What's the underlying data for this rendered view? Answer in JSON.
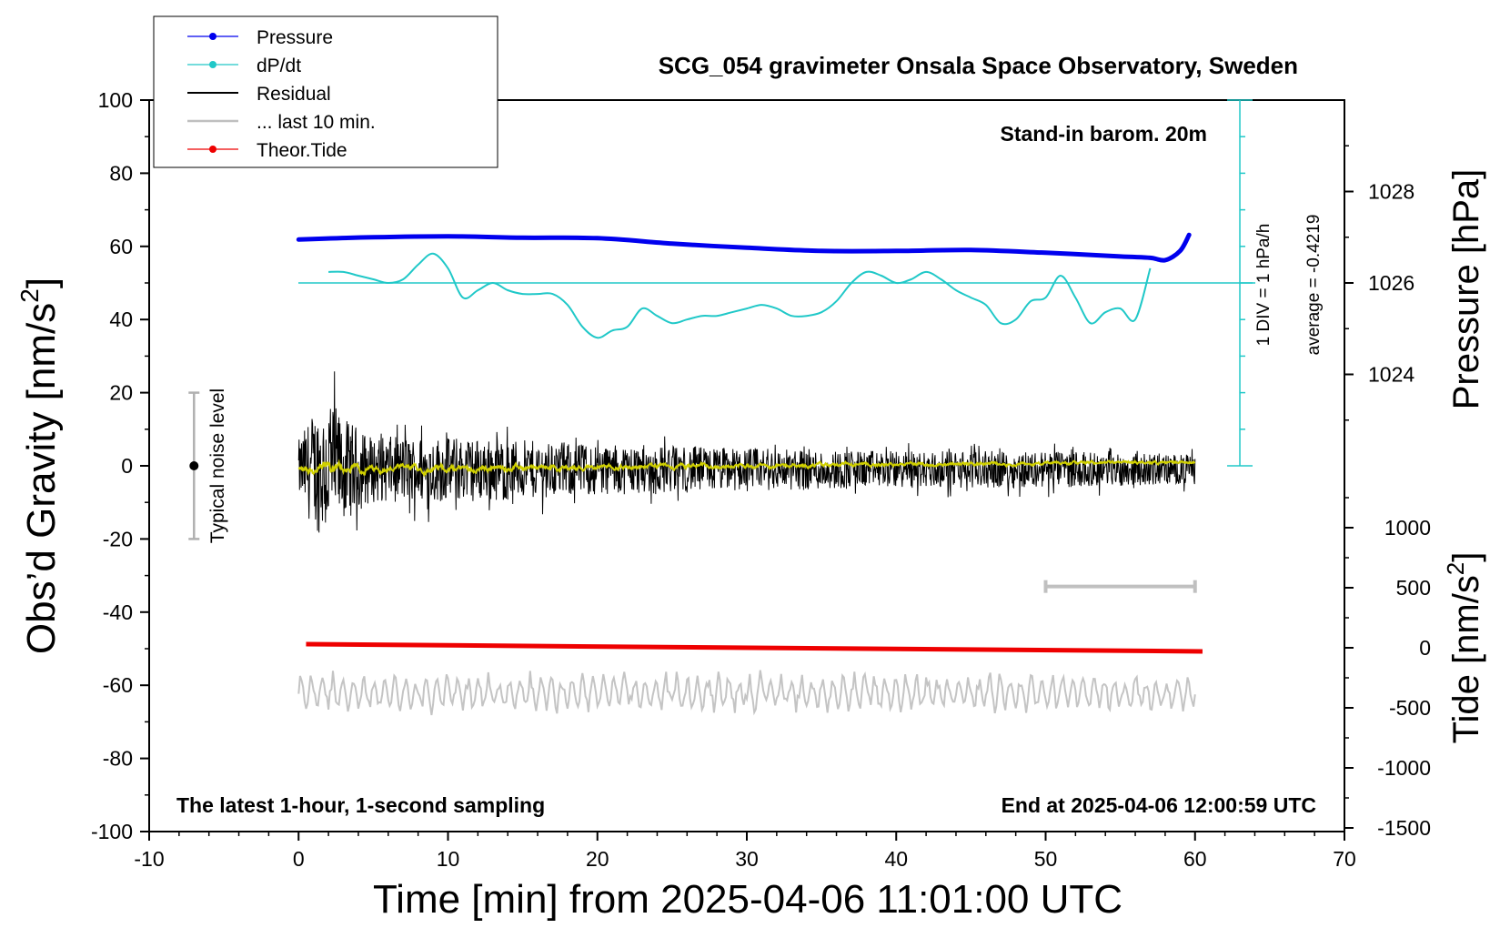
{
  "chart_data": {
    "type": "line",
    "title": "SCG_054 gravimeter Onsala Space Observatory, Sweden",
    "xlabel": "Time [min] from 2025-04-06 11:01:00 UTC",
    "ylabel_left": "Obs’d Gravity [nm/s²]",
    "ylabel_left_base": "Obs’d Gravity [nm/s",
    "ylabel_right_top_base": "Pressure [hPa]",
    "ylabel_right_bottom_base": "Tide [nm/s",
    "superscript": "2",
    "closing_bracket": "]",
    "xlim": [
      -10,
      70
    ],
    "ylim_left": [
      -100,
      100
    ],
    "x_ticks": [
      -10,
      0,
      10,
      20,
      30,
      40,
      50,
      60,
      70
    ],
    "y_ticks_left": [
      100,
      80,
      60,
      40,
      20,
      0,
      -20,
      -40,
      -60,
      -80,
      -100
    ],
    "pressure_axis": {
      "ticks": [
        1028,
        1026,
        1024
      ],
      "range_hpa": [
        1022,
        1030
      ]
    },
    "tide_axis": {
      "ticks": [
        1000,
        500,
        0,
        -500,
        -1000,
        -1500
      ],
      "range": [
        -1500,
        1500
      ]
    },
    "grid": false,
    "legend_position": "top-left",
    "legend": [
      {
        "label": "Pressure",
        "color": "#0000ee",
        "marker": true
      },
      {
        "label": "dP/dt",
        "color": "#20c8c8",
        "marker": true
      },
      {
        "label": "Residual",
        "color": "#000000",
        "marker": false
      },
      {
        "label": "... last 10 min.",
        "color": "#bfbfbf",
        "marker": false
      },
      {
        "label": "Theor.Tide",
        "color": "#ee0000",
        "marker": true
      }
    ],
    "annotations": {
      "barometer": "Stand-in barom. 20m",
      "bottom_left": "The latest 1-hour, 1-second sampling",
      "bottom_right": "End at 2025-04-06 12:00:59 UTC",
      "noise_label": "Typical noise level",
      "div_label": "1 DIV = 1 hPa/h",
      "average_label": "average = -0.4219"
    },
    "noise_bar": {
      "x": -7,
      "center": 0,
      "range": [
        -20,
        20
      ]
    },
    "last10_marker": {
      "x_range": [
        50,
        60
      ],
      "y": -33
    },
    "series": [
      {
        "name": "Pressure",
        "unit": "hPa",
        "color": "#0000ee",
        "x": [
          0,
          5,
          10,
          15,
          20,
          25,
          30,
          35,
          40,
          45,
          50,
          55,
          57,
          58,
          59,
          59.6
        ],
        "y": [
          1026.95,
          1027.0,
          1027.02,
          1026.99,
          1026.98,
          1026.86,
          1026.77,
          1026.7,
          1026.7,
          1026.72,
          1026.66,
          1026.58,
          1026.55,
          1026.5,
          1026.7,
          1027.05
        ]
      },
      {
        "name": "dP/dt",
        "unit": "display nm/s²",
        "color": "#20c8c8",
        "x": [
          2,
          3,
          4,
          5,
          6,
          7,
          8,
          9,
          10,
          11,
          12,
          13,
          14,
          15,
          16,
          17,
          18,
          19,
          20,
          21,
          22,
          23,
          24,
          25,
          26,
          27,
          28,
          29,
          30,
          31,
          32,
          33,
          34,
          35,
          36,
          37,
          38,
          39,
          40,
          41,
          42,
          43,
          44,
          45,
          46,
          47,
          48,
          49,
          50,
          51,
          52,
          53,
          54,
          55,
          56,
          57
        ],
        "y": [
          53,
          53,
          52,
          51,
          50,
          51,
          55,
          58,
          54,
          46,
          48,
          50,
          48,
          47,
          47,
          47,
          44,
          38,
          35,
          37,
          38,
          43,
          41,
          39,
          40,
          41,
          41,
          42,
          43,
          44,
          43,
          41,
          41,
          42,
          45,
          50,
          53,
          52,
          50,
          51,
          53,
          51,
          48,
          46,
          44,
          39,
          40,
          45,
          46,
          52,
          46,
          39,
          42,
          43,
          40,
          54
        ]
      },
      {
        "name": "Theor.Tide",
        "unit": "nm/s²",
        "color": "#ee0000",
        "x": [
          0.5,
          60.5
        ],
        "y": [
          30,
          -30
        ]
      }
    ],
    "residual_envelope": {
      "x": [
        0,
        1,
        2,
        3,
        5,
        10,
        15,
        20,
        30,
        40,
        50,
        60
      ],
      "amplitude": [
        8,
        16,
        20,
        14,
        9,
        9,
        8,
        7,
        6,
        5,
        5,
        4
      ],
      "baseline": -1
    },
    "last10_trace": {
      "baseline": -62,
      "amplitude": 3.5,
      "x_range": [
        0,
        60
      ]
    }
  }
}
